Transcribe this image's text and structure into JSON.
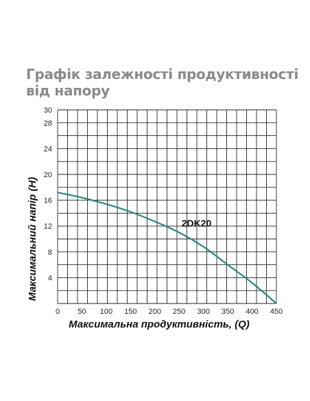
{
  "chart_data": {
    "type": "line",
    "title": "Графік залежності продуктивності від напору",
    "xlabel": "Максимальна продуктивність, (Q)",
    "ylabel": "Максимальний напір (Н)",
    "xlim": [
      0,
      450
    ],
    "ylim": [
      0,
      30
    ],
    "x_ticks": [
      "0",
      "50",
      "100",
      "150",
      "200",
      "250",
      "300",
      "350",
      "400",
      "450"
    ],
    "y_ticks": [
      "4",
      "8",
      "12",
      "16",
      "20",
      "24",
      "28",
      "30"
    ],
    "grid": true,
    "series": [
      {
        "name": "2DK20",
        "color": "#1f8a80",
        "x": [
          0,
          50,
          100,
          150,
          200,
          250,
          300,
          350,
          400,
          450
        ],
        "y": [
          17.2,
          16.4,
          15.4,
          14.2,
          12.7,
          11.0,
          8.8,
          6.0,
          3.2,
          0
        ]
      }
    ]
  }
}
